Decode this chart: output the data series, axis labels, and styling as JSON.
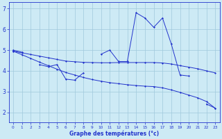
{
  "hours": [
    0,
    1,
    2,
    3,
    4,
    5,
    6,
    7,
    8,
    9,
    10,
    11,
    12,
    13,
    14,
    15,
    16,
    17,
    18,
    19,
    20,
    21,
    22,
    23
  ],
  "temp_actual": [
    5.0,
    4.9,
    null,
    4.3,
    4.2,
    4.3,
    3.6,
    3.55,
    3.9,
    null,
    4.8,
    5.0,
    4.45,
    4.45,
    6.8,
    6.55,
    6.1,
    6.55,
    5.3,
    3.8,
    3.75,
    null,
    2.4,
    2.2
  ],
  "temp_line1": [
    4.95,
    4.87,
    4.79,
    4.71,
    4.63,
    4.55,
    4.47,
    4.44,
    4.41,
    4.4,
    4.39,
    4.39,
    4.4,
    4.4,
    4.4,
    4.4,
    4.4,
    4.38,
    4.33,
    4.25,
    4.18,
    4.1,
    4.0,
    3.9
  ],
  "temp_line2": [
    4.95,
    4.78,
    4.6,
    4.42,
    4.25,
    4.08,
    3.92,
    3.8,
    3.68,
    3.58,
    3.5,
    3.43,
    3.38,
    3.33,
    3.29,
    3.26,
    3.24,
    3.18,
    3.08,
    2.96,
    2.83,
    2.7,
    2.52,
    2.2
  ],
  "bg_color": "#cdeaf5",
  "line_color": "#2233cc",
  "grid_color": "#a0c8dc",
  "xlabel": "Graphe des températures (°c)",
  "xlim": [
    -0.5,
    23.5
  ],
  "ylim": [
    1.5,
    7.3
  ],
  "yticks": [
    2,
    3,
    4,
    5,
    6,
    7
  ],
  "xticks": [
    0,
    1,
    2,
    3,
    4,
    5,
    6,
    7,
    8,
    9,
    10,
    11,
    12,
    13,
    14,
    15,
    16,
    17,
    18,
    19,
    20,
    21,
    22,
    23
  ]
}
